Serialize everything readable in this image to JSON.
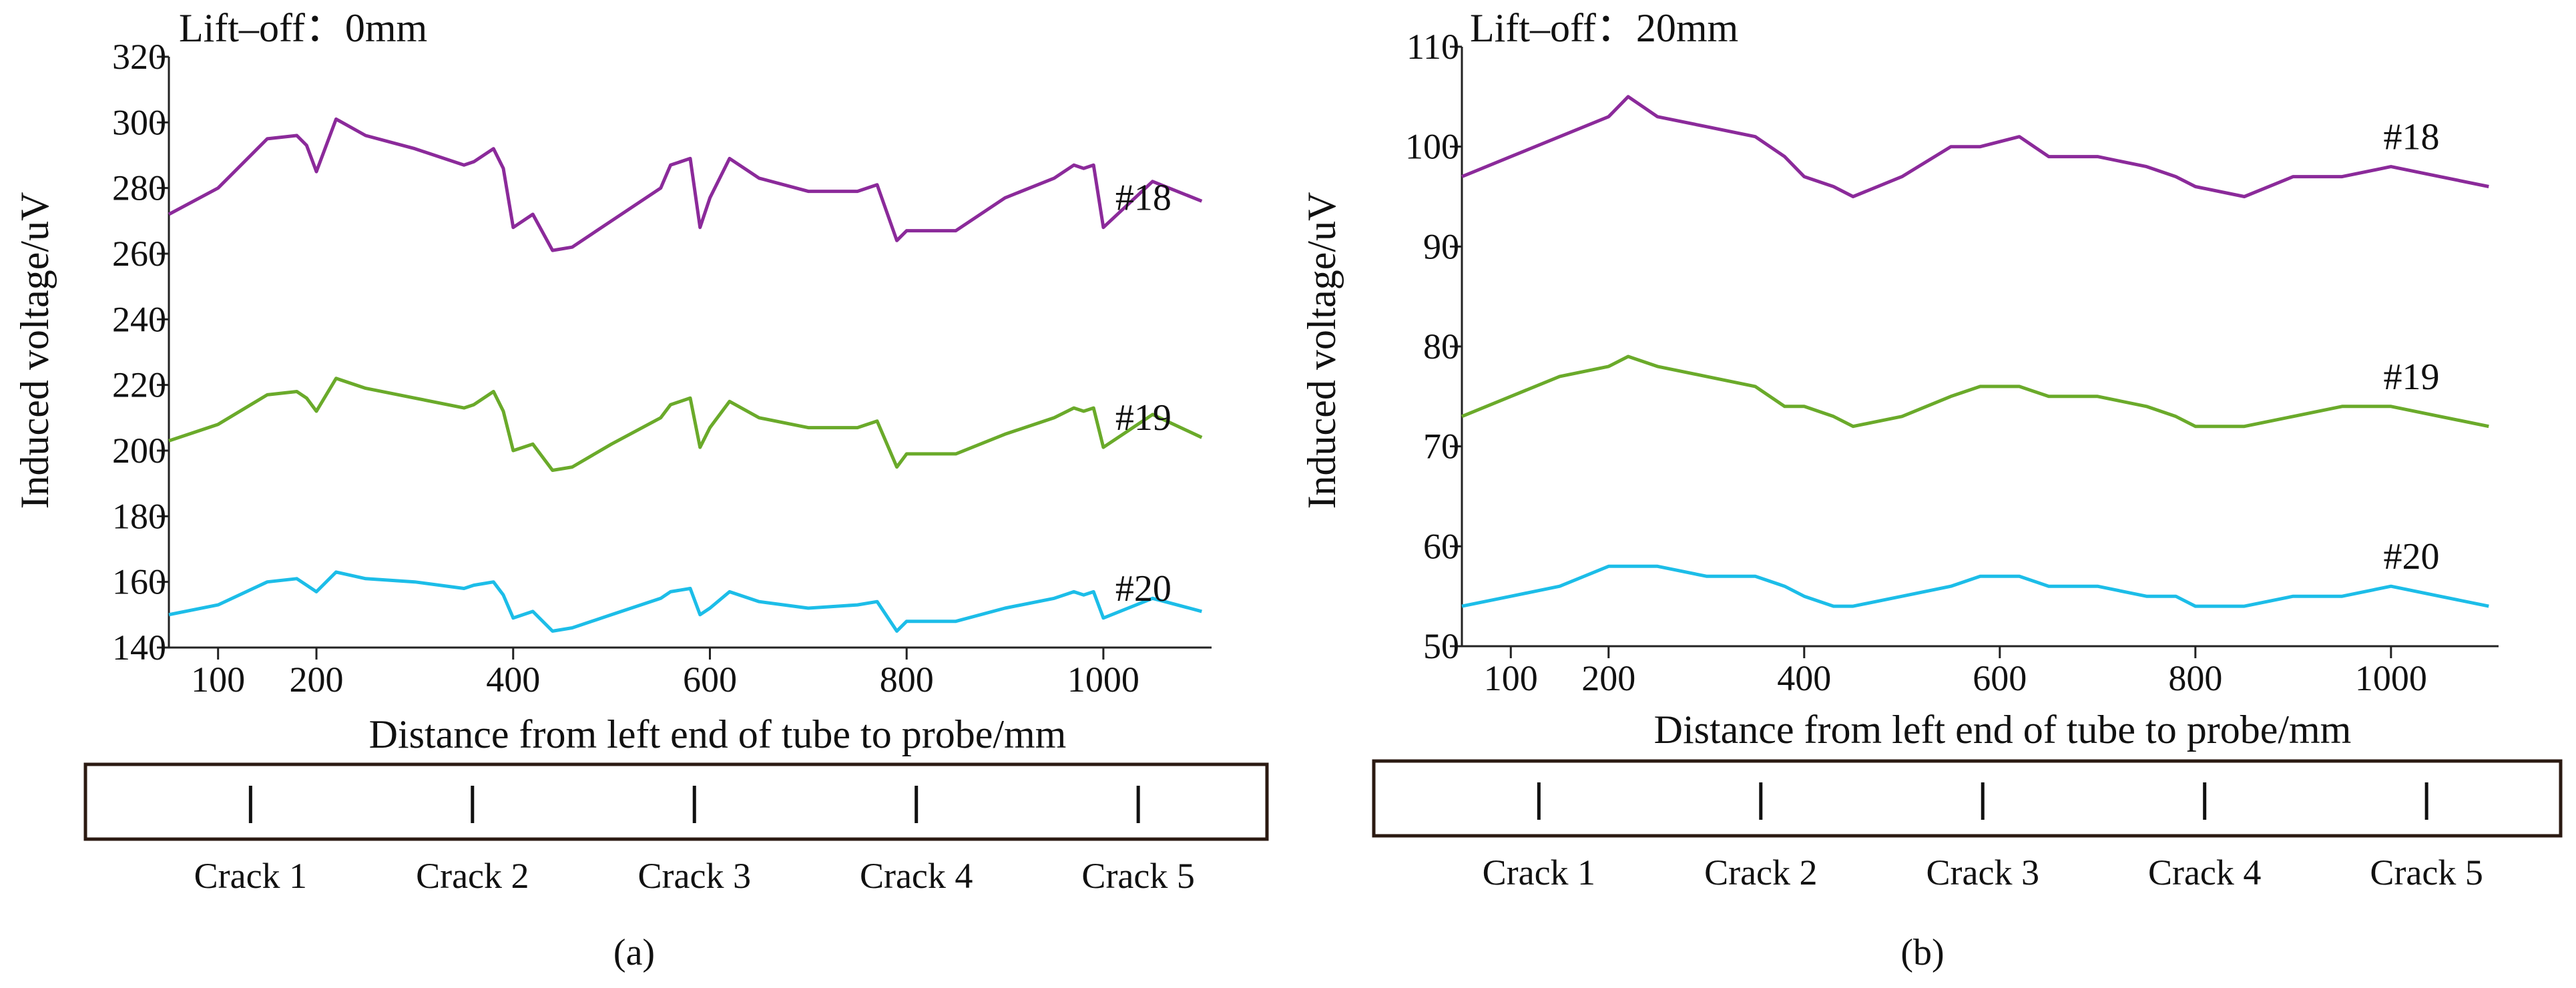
{
  "chart_data": [
    {
      "type": "line",
      "panel_label": "(a)",
      "liftoff_label": "Lift–off：0mm",
      "xlabel": "Distance from left end of tube to probe/mm",
      "ylabel": "Induced voltage/uV",
      "xlim": [
        50,
        1110
      ],
      "ylim": [
        140,
        320
      ],
      "x_ticks": [
        100,
        200,
        400,
        600,
        800,
        1000
      ],
      "y_ticks": [
        140,
        160,
        180,
        200,
        220,
        240,
        260,
        280,
        300,
        320
      ],
      "crack_positions": [
        200,
        400,
        600,
        800,
        1000
      ],
      "crack_labels": [
        "Crack 1",
        "Crack 2",
        "Crack 3",
        "Crack 4",
        "Crack 5"
      ],
      "series": [
        {
          "name": "#18",
          "color": "#8b2a9a",
          "label_x": 1000,
          "x": [
            50,
            100,
            150,
            180,
            190,
            200,
            220,
            250,
            300,
            350,
            360,
            380,
            390,
            400,
            420,
            440,
            460,
            500,
            550,
            560,
            580,
            590,
            600,
            620,
            650,
            700,
            750,
            770,
            790,
            800,
            820,
            850,
            900,
            950,
            970,
            980,
            990,
            1000,
            1050,
            1100
          ],
          "values": [
            272,
            280,
            295,
            296,
            293,
            285,
            301,
            296,
            292,
            287,
            288,
            292,
            286,
            268,
            272,
            261,
            262,
            270,
            280,
            287,
            289,
            268,
            277,
            289,
            283,
            279,
            279,
            281,
            264,
            267,
            267,
            267,
            277,
            283,
            287,
            286,
            287,
            268,
            282,
            276
          ]
        },
        {
          "name": "#19",
          "color": "#6aaa2a",
          "label_x": 1000,
          "x": [
            50,
            100,
            150,
            180,
            190,
            200,
            220,
            250,
            300,
            350,
            360,
            380,
            390,
            400,
            420,
            440,
            460,
            500,
            550,
            560,
            580,
            590,
            600,
            620,
            650,
            700,
            750,
            770,
            790,
            800,
            820,
            850,
            900,
            950,
            970,
            980,
            990,
            1000,
            1050,
            1100
          ],
          "values": [
            203,
            208,
            217,
            218,
            216,
            212,
            222,
            219,
            216,
            213,
            214,
            218,
            212,
            200,
            202,
            194,
            195,
            202,
            210,
            214,
            216,
            201,
            207,
            215,
            210,
            207,
            207,
            209,
            195,
            199,
            199,
            199,
            205,
            210,
            213,
            212,
            213,
            201,
            211,
            204
          ]
        },
        {
          "name": "#20",
          "color": "#1cbde8",
          "label_x": 1000,
          "x": [
            50,
            100,
            150,
            180,
            190,
            200,
            220,
            250,
            300,
            350,
            360,
            380,
            390,
            400,
            420,
            440,
            460,
            500,
            550,
            560,
            580,
            590,
            600,
            620,
            650,
            700,
            750,
            770,
            790,
            800,
            820,
            850,
            900,
            950,
            970,
            980,
            990,
            1000,
            1050,
            1100
          ],
          "values": [
            150,
            153,
            160,
            161,
            159,
            157,
            163,
            161,
            160,
            158,
            159,
            160,
            156,
            149,
            151,
            145,
            146,
            150,
            155,
            157,
            158,
            150,
            152,
            157,
            154,
            152,
            153,
            154,
            145,
            148,
            148,
            148,
            152,
            155,
            157,
            156,
            157,
            149,
            155,
            151
          ]
        }
      ]
    },
    {
      "type": "line",
      "panel_label": "(b)",
      "liftoff_label": "Lift–off：20mm",
      "xlabel": "Distance from left end of tube to probe/mm",
      "ylabel": "Induced voltage/uV",
      "xlim": [
        50,
        1110
      ],
      "ylim": [
        50,
        110
      ],
      "x_ticks": [
        100,
        200,
        400,
        600,
        800,
        1000
      ],
      "y_ticks": [
        50,
        60,
        70,
        80,
        90,
        100,
        110
      ],
      "crack_positions": [
        200,
        400,
        600,
        800,
        1000
      ],
      "crack_labels": [
        "Crack 1",
        "Crack 2",
        "Crack 3",
        "Crack 4",
        "Crack 5"
      ],
      "series": [
        {
          "name": "#18",
          "color": "#8b2a9a",
          "label_x": 980,
          "x": [
            50,
            100,
            150,
            200,
            220,
            250,
            300,
            350,
            380,
            400,
            430,
            450,
            500,
            550,
            580,
            620,
            650,
            700,
            750,
            780,
            800,
            850,
            900,
            950,
            1000,
            1050,
            1100
          ],
          "values": [
            97,
            99,
            101,
            103,
            105,
            103,
            102,
            101,
            99,
            97,
            96,
            95,
            97,
            100,
            100,
            101,
            99,
            99,
            98,
            97,
            96,
            95,
            97,
            97,
            98,
            97,
            96
          ]
        },
        {
          "name": "#19",
          "color": "#6aaa2a",
          "label_x": 980,
          "x": [
            50,
            100,
            150,
            200,
            220,
            250,
            300,
            350,
            380,
            400,
            430,
            450,
            500,
            550,
            580,
            620,
            650,
            700,
            750,
            780,
            800,
            850,
            900,
            950,
            1000,
            1050,
            1100
          ],
          "values": [
            73,
            75,
            77,
            78,
            79,
            78,
            77,
            76,
            74,
            74,
            73,
            72,
            73,
            75,
            76,
            76,
            75,
            75,
            74,
            73,
            72,
            72,
            73,
            74,
            74,
            73,
            72
          ]
        },
        {
          "name": "#20",
          "color": "#1cbde8",
          "label_x": 980,
          "x": [
            50,
            100,
            150,
            200,
            220,
            250,
            300,
            350,
            380,
            400,
            430,
            450,
            500,
            550,
            580,
            620,
            650,
            700,
            750,
            780,
            800,
            850,
            900,
            950,
            1000,
            1050,
            1100
          ],
          "values": [
            54,
            55,
            56,
            58,
            58,
            58,
            57,
            57,
            56,
            55,
            54,
            54,
            55,
            56,
            57,
            57,
            56,
            56,
            55,
            55,
            54,
            54,
            55,
            55,
            56,
            55,
            54
          ]
        }
      ]
    }
  ]
}
